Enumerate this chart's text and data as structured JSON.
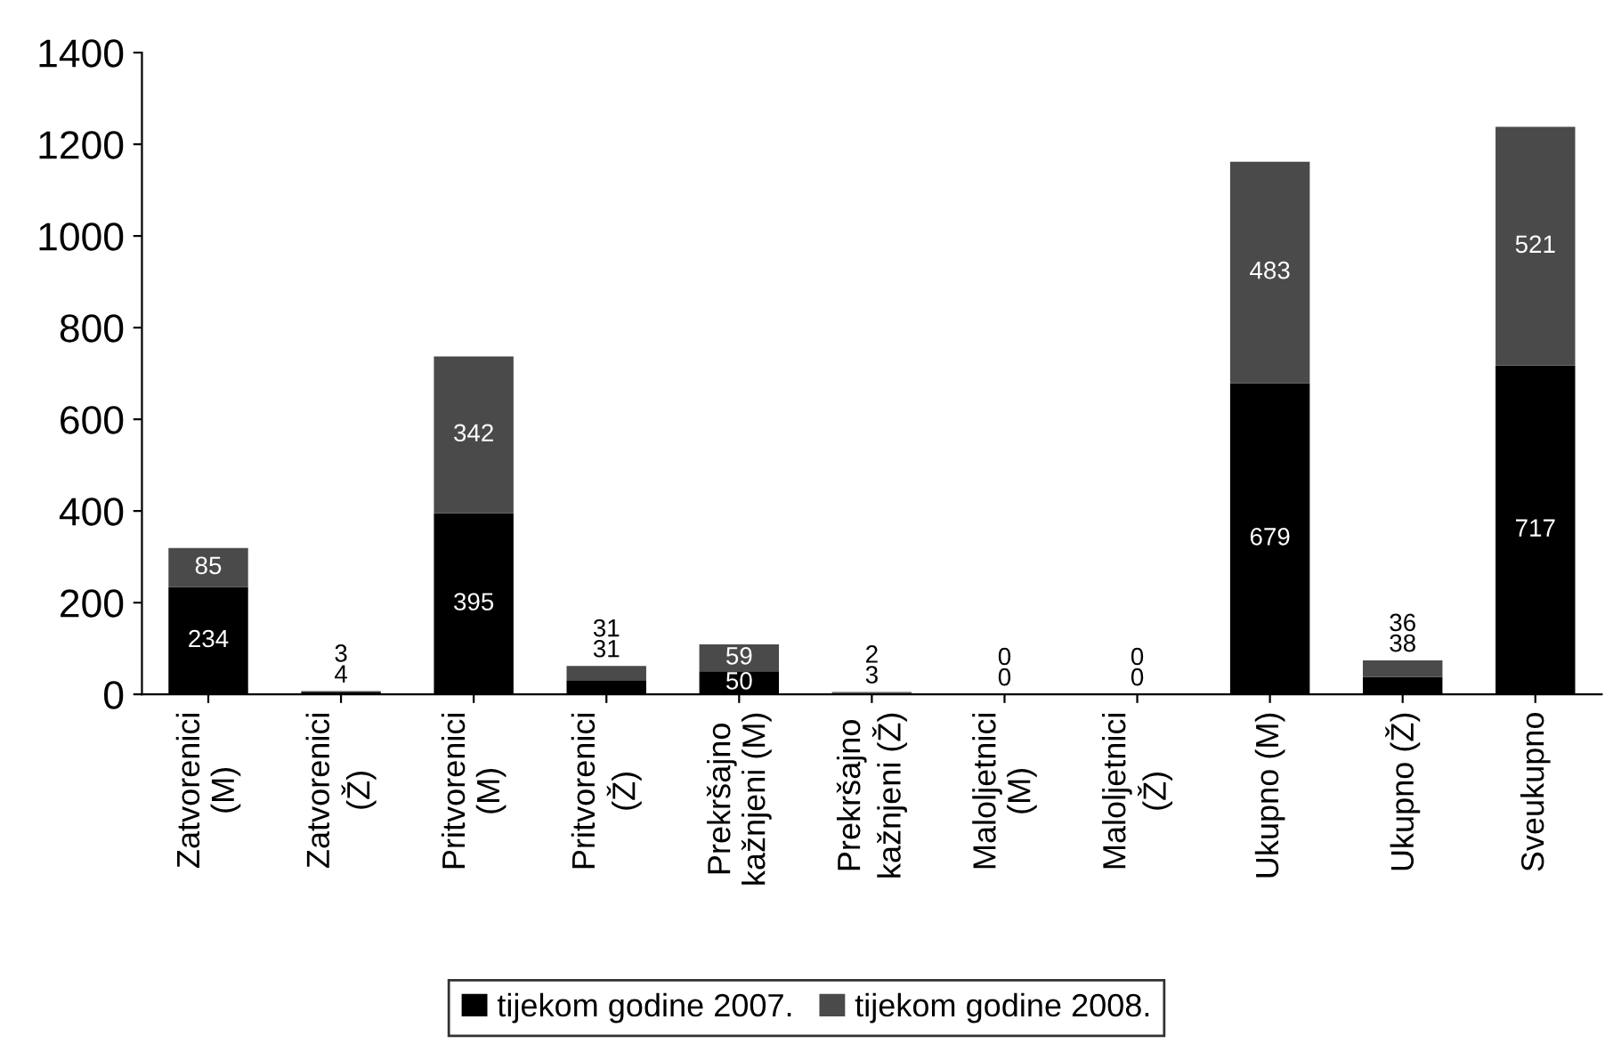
{
  "chart_data": {
    "type": "bar",
    "stacked": true,
    "categories": [
      "Zatvorenici\n(M)",
      "Zatvorenici\n(Ž)",
      "Pritvorenici\n(M)",
      "Pritvorenici\n(Ž)",
      "Prekršajno\nkažnjeni (M)",
      "Prekršajno\nkažnjeni (Ž)",
      "Maloljetnici\n(M)",
      "Maloljetnici\n(Ž)",
      "Ukupno (M)",
      "Ukupno (Ž)",
      "Sveukupno"
    ],
    "series": [
      {
        "name": "tijekom godine 2007.",
        "color": "#000000",
        "values": [
          234,
          4,
          395,
          31,
          50,
          3,
          0,
          0,
          679,
          38,
          717
        ]
      },
      {
        "name": "tijekom godine 2008.",
        "color": "#4a4a4a",
        "values": [
          85,
          3,
          342,
          31,
          59,
          2,
          0,
          0,
          483,
          36,
          521
        ]
      }
    ],
    "ylim": [
      0,
      1400
    ],
    "yticks": [
      0,
      200,
      400,
      600,
      800,
      1000,
      1200,
      1400
    ],
    "data_labels": true,
    "grid": false,
    "legend": "bottom"
  }
}
